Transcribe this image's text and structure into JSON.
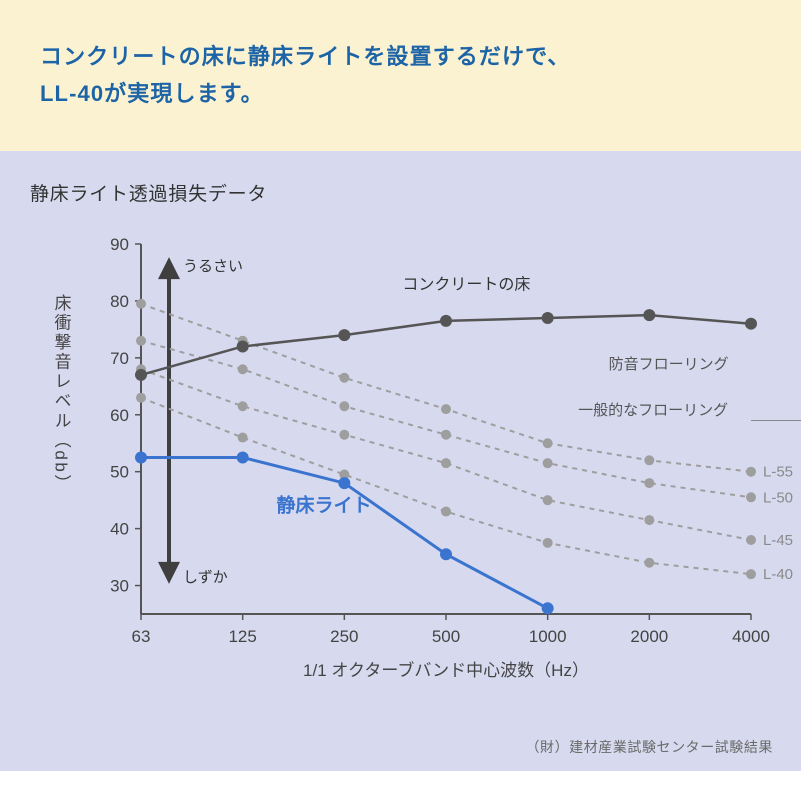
{
  "banner": {
    "line1": "コンクリートの床に静床ライトを設置するだけで、",
    "line2": "LL-40が実現します。"
  },
  "chart": {
    "subtitle": "静床ライト透過損失データ",
    "type": "line",
    "background_color": "#d7daef",
    "plot_bg": "#d7daef",
    "axis_color": "#555555",
    "grid_color": "#bdbdbd",
    "x": {
      "label": "1/1 オクターブバンド中心波数（Hz）",
      "categories": [
        "63",
        "125",
        "250",
        "500",
        "1000",
        "2000",
        "4000"
      ],
      "label_color": "#444444",
      "label_fontsize": 17,
      "tick_fontsize": 17
    },
    "y": {
      "label": "床衝撃音レベル（db）",
      "ticks": [
        30,
        40,
        50,
        60,
        70,
        80,
        90
      ],
      "ylim": [
        25,
        90
      ],
      "label_color": "#444444",
      "label_fontsize": 17,
      "tick_fontsize": 17
    },
    "arrow": {
      "top_label": "うるさい",
      "bottom_label": "しずか",
      "color": "#3f3f3f"
    },
    "series": {
      "concrete": {
        "label": "コンクリートの床",
        "color": "#555555",
        "line_width": 2.5,
        "marker": "circle",
        "marker_size": 6,
        "values": [
          67,
          72,
          74,
          76.5,
          77,
          77.5,
          76
        ]
      },
      "seiyuka": {
        "label": "静床ライト",
        "color": "#3a74cf",
        "line_width": 3,
        "marker": "circle",
        "marker_size": 6,
        "values": [
          52.5,
          52.5,
          48,
          35.5,
          26,
          null,
          null
        ]
      },
      "L55": {
        "label": "L-55",
        "color": "#9e9e9e",
        "dash": "5,5",
        "line_width": 2,
        "marker": "circle",
        "marker_size": 5,
        "values": [
          79.5,
          73,
          66.5,
          61,
          55,
          52,
          50
        ]
      },
      "L50": {
        "label": "L-50",
        "color": "#9e9e9e",
        "dash": "5,5",
        "line_width": 2,
        "marker": "circle",
        "marker_size": 5,
        "values": [
          73,
          68,
          61.5,
          56.5,
          51.5,
          48,
          45.5
        ]
      },
      "L45": {
        "label": "L-45",
        "color": "#9e9e9e",
        "dash": "5,5",
        "line_width": 2,
        "marker": "circle",
        "marker_size": 5,
        "values": [
          68,
          61.5,
          56.5,
          51.5,
          45,
          41.5,
          38
        ]
      },
      "L40": {
        "label": "L-40",
        "color": "#9e9e9e",
        "dash": "5,5",
        "line_width": 2,
        "marker": "circle",
        "marker_size": 5,
        "values": [
          63,
          56,
          49.5,
          43,
          37.5,
          34,
          32
        ]
      }
    },
    "annotations": {
      "soundproof": "防音フローリング",
      "general": "一般的なフローリング"
    }
  },
  "footer": {
    "note": "（財）建材産業試験センター試験結果"
  }
}
